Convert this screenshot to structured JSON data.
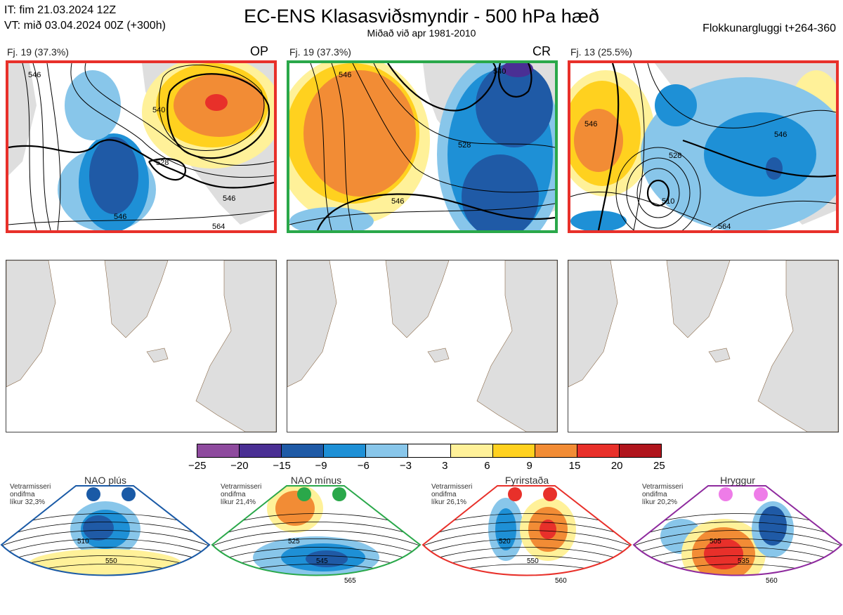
{
  "header": {
    "it_line": "IT: fim 21.03.2024 12Z",
    "vt_line": "VT: mið 03.04.2024 00Z  (+300h)",
    "title": "EC-ENS Klasasviðsmyndir - 500 hPa hæð",
    "subtitle": "Miðað við apr 1981-2010",
    "window": "Flokkunargluggi t+264-360"
  },
  "clusters": [
    {
      "label": "Fj. 19 (37.3%)",
      "tag": "OP",
      "border": "#e8302a",
      "contours": [
        "546",
        "540",
        "528",
        "546",
        "546",
        "564"
      ]
    },
    {
      "label": "Fj. 19 (37.3%)",
      "tag": "CR",
      "border": "#2aa84a",
      "contours": [
        "546",
        "528",
        "546",
        "540"
      ]
    },
    {
      "label": "Fj. 13 (25.5%)",
      "tag": "",
      "border": "#e8302a",
      "contours": [
        "546",
        "528",
        "510",
        "546",
        "564"
      ]
    }
  ],
  "colorbar": {
    "colors": [
      "#8e4a9e",
      "#4a2f94",
      "#1f5aa6",
      "#1e90d6",
      "#88c6ea",
      "#ffffff",
      "#fff199",
      "#ffd11f",
      "#f28c35",
      "#e8302a",
      "#b0141c"
    ],
    "ticks": [
      "−25",
      "−20",
      "−15",
      "−9",
      "−6",
      "−3",
      "3",
      "6",
      "9",
      "15",
      "20",
      "25"
    ]
  },
  "regimes": [
    {
      "title": "NAO plús",
      "note": [
        "Vetrarmisseri",
        "ondifma",
        "líkur 32,3%"
      ],
      "border": "#1a5aa6",
      "dot": "#1a5aa6",
      "contours": [
        "510",
        "550"
      ]
    },
    {
      "title": "NAO mínus",
      "note": [
        "Vetrarmisseri",
        "ondifma",
        "líkur 21,4%"
      ],
      "border": "#2aa84a",
      "dot": "#2aa84a",
      "contours": [
        "525",
        "545",
        "565"
      ]
    },
    {
      "title": "Fyrirstaða",
      "note": [
        "Vetrarmisseri",
        "ondifma",
        "líkur 26,1%"
      ],
      "border": "#e8302a",
      "dot": "#e8302a",
      "contours": [
        "520",
        "550",
        "560"
      ]
    },
    {
      "title": "Hryggur",
      "note": [
        "Vetrarmisseri",
        "ondifma",
        "líkur 20,2%"
      ],
      "border": "#8e2a9e",
      "dot": "#ee7ce8",
      "contours": [
        "505",
        "535",
        "560"
      ]
    }
  ]
}
